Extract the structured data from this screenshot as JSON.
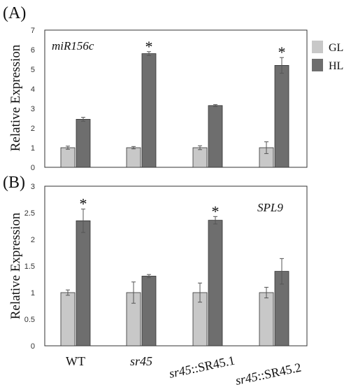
{
  "chart_data": [
    {
      "type": "bar",
      "panel_label": "(A)",
      "gene": "miR156c",
      "ylabel": "Relative Expression",
      "ylim": [
        0,
        7
      ],
      "yticks": [
        "0",
        "1",
        "2",
        "3",
        "4",
        "5",
        "6",
        "7"
      ],
      "categories": [
        "WT",
        "sr45",
        "sr45::SR45.1",
        "sr45::SR45.2"
      ],
      "series": [
        {
          "name": "GL",
          "color": "#c8c8c8",
          "values": [
            1.0,
            1.0,
            1.0,
            1.0
          ],
          "errors": [
            0.08,
            0.06,
            0.1,
            0.3
          ]
        },
        {
          "name": "HL",
          "color": "#6e6e6e",
          "values": [
            2.45,
            5.8,
            3.15,
            5.2
          ],
          "errors": [
            0.1,
            0.1,
            0.05,
            0.4
          ]
        }
      ],
      "significance": [
        "",
        "*",
        "",
        "*"
      ],
      "legend": {
        "placement": "right",
        "items": [
          "GL",
          "HL"
        ]
      }
    },
    {
      "type": "bar",
      "panel_label": "(B)",
      "gene": "SPL9",
      "ylabel": "Relative Expression",
      "ylim": [
        0,
        3
      ],
      "yticks": [
        "0",
        "0.5",
        "1",
        "1.5",
        "2",
        "2.5",
        "3"
      ],
      "categories": [
        "WT",
        "sr45",
        "sr45::SR45.1",
        "sr45::SR45.2"
      ],
      "category_labels": [
        {
          "prefix": "WT",
          "suffix": ""
        },
        {
          "prefix": "sr45",
          "suffix": ""
        },
        {
          "prefix": "sr45",
          "suffix": "::SR45.1"
        },
        {
          "prefix": "sr45",
          "suffix": "::SR45.2"
        }
      ],
      "series": [
        {
          "name": "GL",
          "color": "#c8c8c8",
          "values": [
            1.0,
            1.0,
            1.0,
            1.0
          ],
          "errors": [
            0.05,
            0.2,
            0.18,
            0.1
          ]
        },
        {
          "name": "HL",
          "color": "#6e6e6e",
          "values": [
            2.35,
            1.31,
            2.36,
            1.4
          ],
          "errors": [
            0.22,
            0.03,
            0.07,
            0.24
          ]
        }
      ],
      "significance": [
        "*",
        "",
        "*",
        ""
      ]
    }
  ]
}
